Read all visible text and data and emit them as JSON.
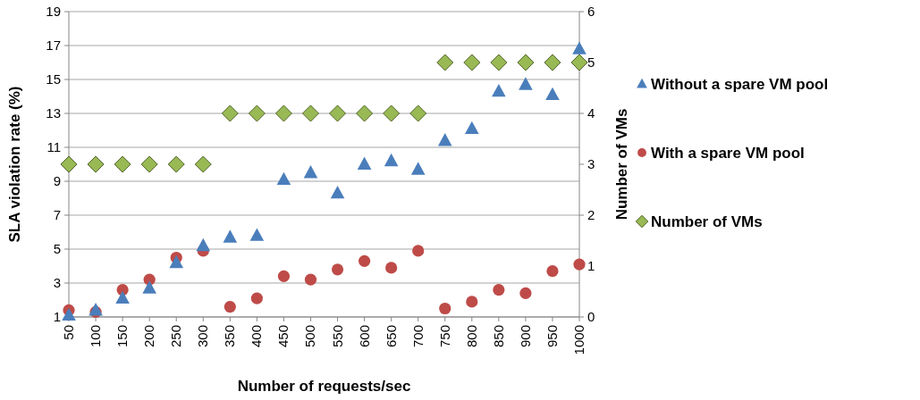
{
  "chart_data": {
    "type": "scatter",
    "xlabel": "Number of requests/sec",
    "ylabel": "SLA violation rate (%)",
    "y2label": "Number of VMs",
    "categories": [
      "50",
      "100",
      "150",
      "200",
      "250",
      "300",
      "350",
      "400",
      "450",
      "500",
      "550",
      "600",
      "650",
      "700",
      "750",
      "800",
      "850",
      "900",
      "950",
      "1000"
    ],
    "ylim": [
      1,
      19
    ],
    "yticks": [
      1,
      3,
      5,
      7,
      9,
      11,
      13,
      15,
      17,
      19
    ],
    "y2lim": [
      0,
      6
    ],
    "y2ticks": [
      0,
      1,
      2,
      3,
      4,
      5,
      6
    ],
    "grid": "y",
    "legend": "right",
    "series": [
      {
        "name": "Without a spare VM pool",
        "color": "#4a7ebb",
        "marker": "triangle",
        "values": [
          1.1,
          1.4,
          2.1,
          2.7,
          4.2,
          5.2,
          5.7,
          5.8,
          9.1,
          9.5,
          8.3,
          10.0,
          10.2,
          9.7,
          11.4,
          12.1,
          14.3,
          14.7,
          14.1,
          16.8
        ]
      },
      {
        "name": "With a spare VM pool",
        "color": "#be4b48",
        "marker": "circle",
        "values": [
          1.4,
          1.3,
          2.6,
          3.2,
          4.5,
          4.9,
          1.6,
          2.1,
          3.4,
          3.2,
          3.8,
          4.3,
          3.9,
          4.9,
          1.5,
          1.9,
          2.6,
          2.4,
          3.7,
          4.1
        ]
      },
      {
        "name": "Number of VMs",
        "color": "#98b954",
        "marker": "diamond",
        "axis": "y2",
        "values": [
          3,
          3,
          3,
          3,
          3,
          3,
          4,
          4,
          4,
          4,
          4,
          4,
          4,
          4,
          5,
          5,
          5,
          5,
          5,
          5
        ]
      }
    ]
  }
}
